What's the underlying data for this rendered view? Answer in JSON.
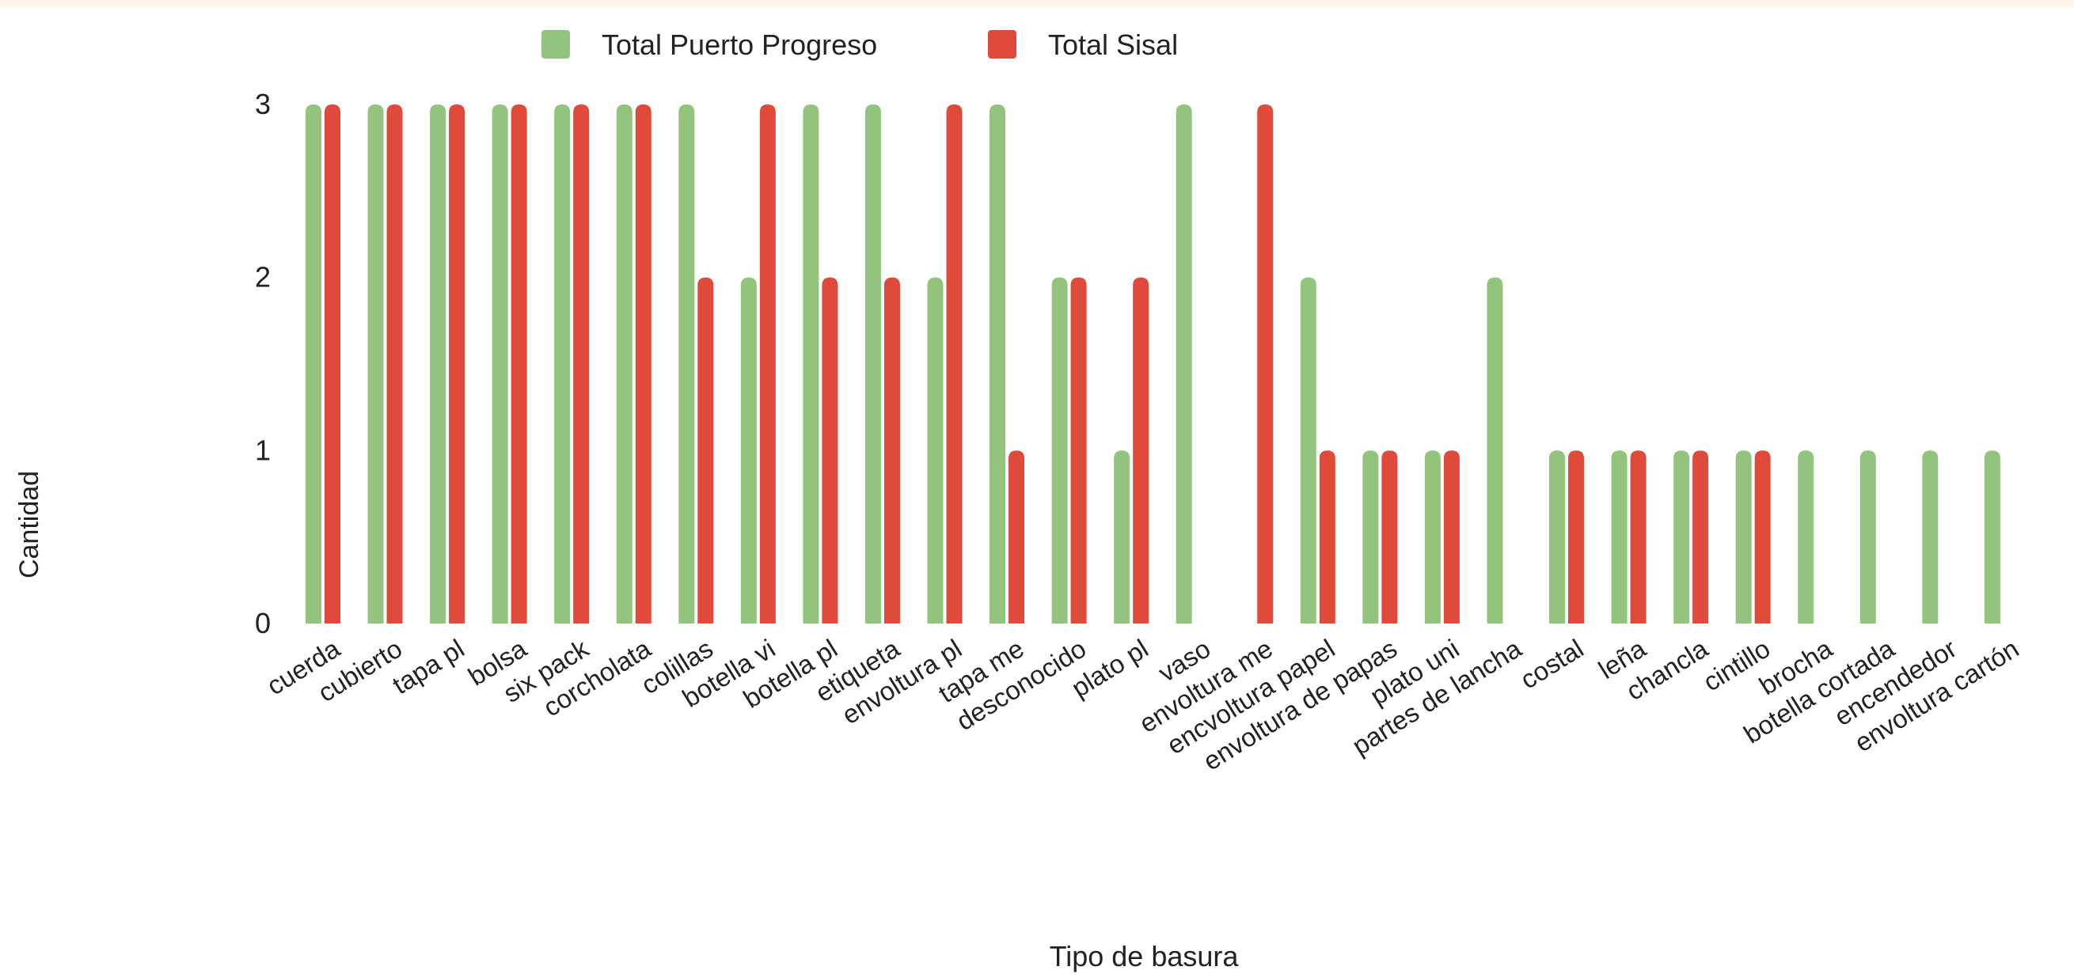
{
  "chart_data": {
    "type": "bar",
    "xlabel": "Tipo de basura",
    "ylabel": "Cantidad",
    "ylim": [
      0,
      3
    ],
    "yticks": [
      "0",
      "1",
      "2",
      "3"
    ],
    "grid": false,
    "legend_position": "top-center",
    "categories": [
      "cuerda",
      "cubierto",
      "tapa pl",
      "bolsa",
      "six pack",
      "corcholata",
      "colillas",
      "botella vi",
      "botella pl",
      "etiqueta",
      "envoltura pl",
      "tapa me",
      "desconocido",
      "plato pl",
      "vaso",
      "envoltura me",
      "encvoltura papel",
      "envoltura de papas",
      "plato uni",
      "partes de lancha",
      "costal",
      "leña",
      "chancla",
      "cintillo",
      "brocha",
      "botella cortada",
      "encendedor",
      "envoltura cartón"
    ],
    "series": [
      {
        "name": "Total Puerto Progreso",
        "color": "#93c47d",
        "values": [
          3,
          3,
          3,
          3,
          3,
          3,
          3,
          2,
          3,
          3,
          2,
          3,
          2,
          1,
          3,
          0,
          2,
          1,
          1,
          2,
          1,
          1,
          1,
          1,
          1,
          1,
          1,
          1
        ]
      },
      {
        "name": "Total Sisal",
        "color": "#e04a3a",
        "values": [
          3,
          3,
          3,
          3,
          3,
          3,
          2,
          3,
          2,
          2,
          3,
          1,
          2,
          2,
          0,
          3,
          1,
          1,
          1,
          0,
          1,
          1,
          1,
          1,
          0,
          0,
          0,
          0
        ]
      }
    ]
  }
}
